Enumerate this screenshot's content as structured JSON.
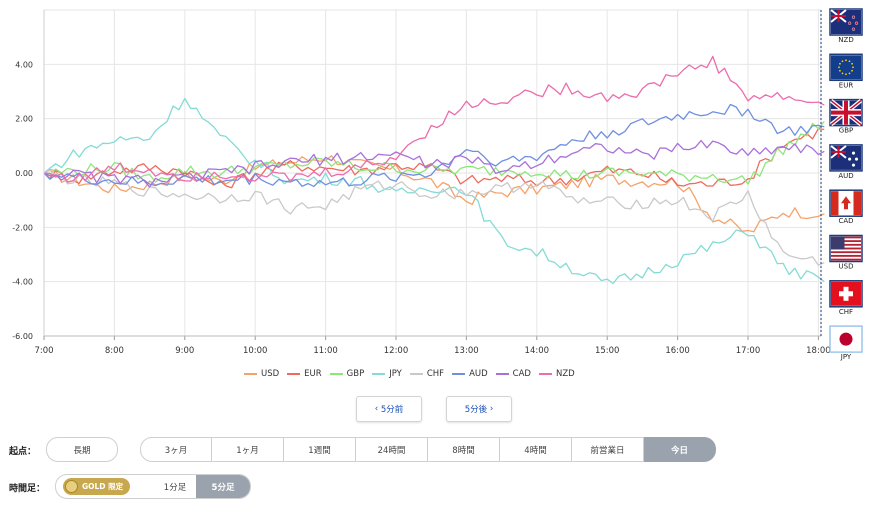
{
  "chart_data": {
    "type": "line",
    "x": [
      "7:00",
      "7:30",
      "8:00",
      "8:30",
      "9:00",
      "9:30",
      "10:00",
      "10:30",
      "11:00",
      "11:30",
      "12:00",
      "12:30",
      "13:00",
      "13:30",
      "14:00",
      "14:30",
      "15:00",
      "15:30",
      "16:00",
      "16:30",
      "17:00",
      "17:30",
      "18:05"
    ],
    "x_ticks": [
      "7:00",
      "8:00",
      "9:00",
      "10:00",
      "11:00",
      "12:00",
      "13:00",
      "14:00",
      "15:00",
      "16:00",
      "17:00",
      "18:00"
    ],
    "y_ticks": [
      "4.00",
      "2.00",
      "0.00",
      "-2.00",
      "-4.00",
      "-6.00"
    ],
    "ylim": [
      -6,
      6
    ],
    "grid": true,
    "legend_position": "bottom",
    "series": [
      {
        "name": "USD",
        "color": "#f4a26a",
        "values": [
          0,
          -0.3,
          -0.6,
          -0.4,
          -0.1,
          -0.3,
          0.2,
          0.4,
          0.6,
          0.3,
          0.1,
          -0.3,
          -1.0,
          -0.7,
          -0.6,
          -0.4,
          -0.2,
          -0.3,
          -0.3,
          -1.6,
          -2.2,
          -1.4,
          -1.5
        ]
      },
      {
        "name": "EUR",
        "color": "#ee6a5e",
        "values": [
          0,
          -0.2,
          0.1,
          0.2,
          0.1,
          -0.5,
          0,
          0.3,
          0.2,
          0.1,
          0.3,
          0.2,
          -0.3,
          -0.2,
          -0.3,
          -0.2,
          0.1,
          0,
          -0.4,
          -0.4,
          -0.2,
          1.1,
          1.6
        ]
      },
      {
        "name": "GBP",
        "color": "#8de57b",
        "values": [
          0,
          0.1,
          0.2,
          -0.2,
          0.1,
          0,
          0.2,
          0.3,
          0.4,
          0.2,
          0.2,
          0.1,
          0.1,
          0.1,
          0.1,
          -0.1,
          0,
          0,
          -0.1,
          -0.1,
          -0.3,
          0.9,
          1.9
        ]
      },
      {
        "name": "JPY",
        "color": "#84dbd6",
        "values": [
          0,
          0.8,
          1.2,
          1.3,
          2.8,
          1.3,
          0.4,
          -0.3,
          -0.2,
          -0.3,
          -0.8,
          -0.5,
          -0.6,
          -2.5,
          -2.9,
          -3.5,
          -4.1,
          -3.7,
          -3.2,
          -2.7,
          -2.1,
          -3.5,
          -4.0
        ]
      },
      {
        "name": "CHF",
        "color": "#c9c9c9",
        "values": [
          0,
          -0.3,
          -0.4,
          -0.7,
          -0.8,
          -0.9,
          -0.8,
          -1.3,
          -1.2,
          -0.6,
          -0.4,
          -0.8,
          -0.7,
          -0.6,
          -0.3,
          -1.0,
          -1.1,
          -1.1,
          -1.0,
          -1.6,
          -0.8,
          -3.0,
          -3.3
        ]
      },
      {
        "name": "AUD",
        "color": "#6f8fe0",
        "values": [
          0,
          -0.2,
          -0.3,
          -0.4,
          -0.2,
          -0.3,
          -0.2,
          -0.3,
          -0.4,
          -0.3,
          -0.1,
          0,
          0.9,
          0.4,
          0.6,
          1.2,
          1.5,
          1.8,
          2.1,
          2.3,
          2.3,
          1.5,
          1.7
        ]
      },
      {
        "name": "CAD",
        "color": "#a870db",
        "values": [
          0,
          -0.1,
          -0.2,
          -0.3,
          -0.2,
          0,
          0.2,
          0.4,
          0.5,
          0.6,
          0.7,
          0.3,
          0.5,
          0.1,
          0.4,
          0.8,
          1.0,
          0.6,
          0.9,
          1.1,
          0.7,
          1.0,
          0.8
        ]
      },
      {
        "name": "NZD",
        "color": "#ec6cac",
        "values": [
          0,
          -0.2,
          0.2,
          0.1,
          -0.1,
          0,
          -0.1,
          -0.2,
          0,
          0.2,
          0.6,
          1.7,
          2.5,
          2.7,
          3.0,
          3.1,
          2.8,
          3.0,
          3.7,
          4.1,
          2.8,
          2.8,
          2.5
        ]
      }
    ]
  },
  "flags": [
    {
      "code": "NZD",
      "label": "NZD"
    },
    {
      "code": "EUR",
      "label": "EUR"
    },
    {
      "code": "GBP",
      "label": "GBP"
    },
    {
      "code": "AUD",
      "label": "AUD"
    },
    {
      "code": "CAD",
      "label": "CAD"
    },
    {
      "code": "USD",
      "label": "USD"
    },
    {
      "code": "CHF",
      "label": "CHF"
    },
    {
      "code": "JPY",
      "label": "JPY"
    }
  ],
  "nav": {
    "prev_label": "5分前",
    "next_label": "5分後"
  },
  "range": {
    "label": "起点：",
    "options": [
      "長期",
      "3ヶ月",
      "1ヶ月",
      "1週間",
      "24時間",
      "8時間",
      "4時間",
      "前営業日",
      "今日"
    ],
    "active": "今日"
  },
  "timeframe": {
    "label": "時間足：",
    "gold_label": "GOLD 限定",
    "options": [
      "1分足",
      "5分足"
    ],
    "active": "5分足"
  },
  "colors": {
    "grid": "#e6e6e6",
    "axis": "#333333",
    "flag_border": "#1e3a7a",
    "active_button": "#9aa3ad",
    "gold": "#c8a84e"
  }
}
